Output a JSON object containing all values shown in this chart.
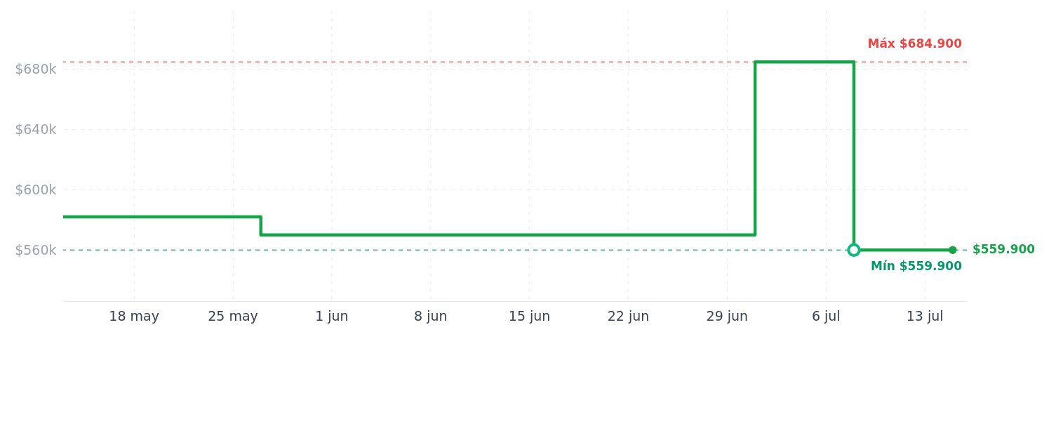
{
  "chart_data": {
    "type": "step",
    "x": [
      "--05-13",
      "--05-27",
      "--07-01",
      "--07-08",
      "--07-15"
    ],
    "series": [
      {
        "color": "#16a34a",
        "values": [
          581.9,
          569.9,
          684.9,
          559.9,
          559.9
        ]
      },
      {
        "type": "scatter",
        "marker": "circle",
        "color": "#10b981",
        "x": [
          "--07-08"
        ],
        "values": [
          559.9
        ]
      }
    ],
    "xlim": [
      "--05-13",
      "--07-16"
    ],
    "xticks": [
      {
        "value": "--05-18",
        "label": "18 may"
      },
      {
        "value": "--05-25",
        "label": "25 may"
      },
      {
        "value": "--06-01",
        "label": "1 jun"
      },
      {
        "value": "--06-08",
        "label": "8 jun"
      },
      {
        "value": "--06-15",
        "label": "15 jun"
      },
      {
        "value": "--06-22",
        "label": "22 jun"
      },
      {
        "value": "--06-29",
        "label": "29 jun"
      },
      {
        "value": "--07-06",
        "label": "6 jul"
      },
      {
        "value": "--07-13",
        "label": "13 jul"
      }
    ],
    "ylim": [
      526,
      719
    ],
    "yticks": [
      {
        "value": 560,
        "label": "$560k"
      },
      {
        "value": 600,
        "label": "$600k"
      },
      {
        "value": 640,
        "label": "$640k"
      },
      {
        "value": 680,
        "label": "$680k"
      }
    ],
    "grid": true,
    "ref_lines": [
      {
        "axis": "y",
        "value": 684.9,
        "label": "Máx $684.900",
        "color": "#ef4444",
        "line_style": "dashed"
      },
      {
        "axis": "y",
        "value": 559.9,
        "label": "Mín $559.900",
        "color": "#059669",
        "line_style": "dashed"
      }
    ],
    "annotations": [
      {
        "text": "$559.900",
        "x": "--07-15",
        "y": 559.9
      }
    ]
  }
}
